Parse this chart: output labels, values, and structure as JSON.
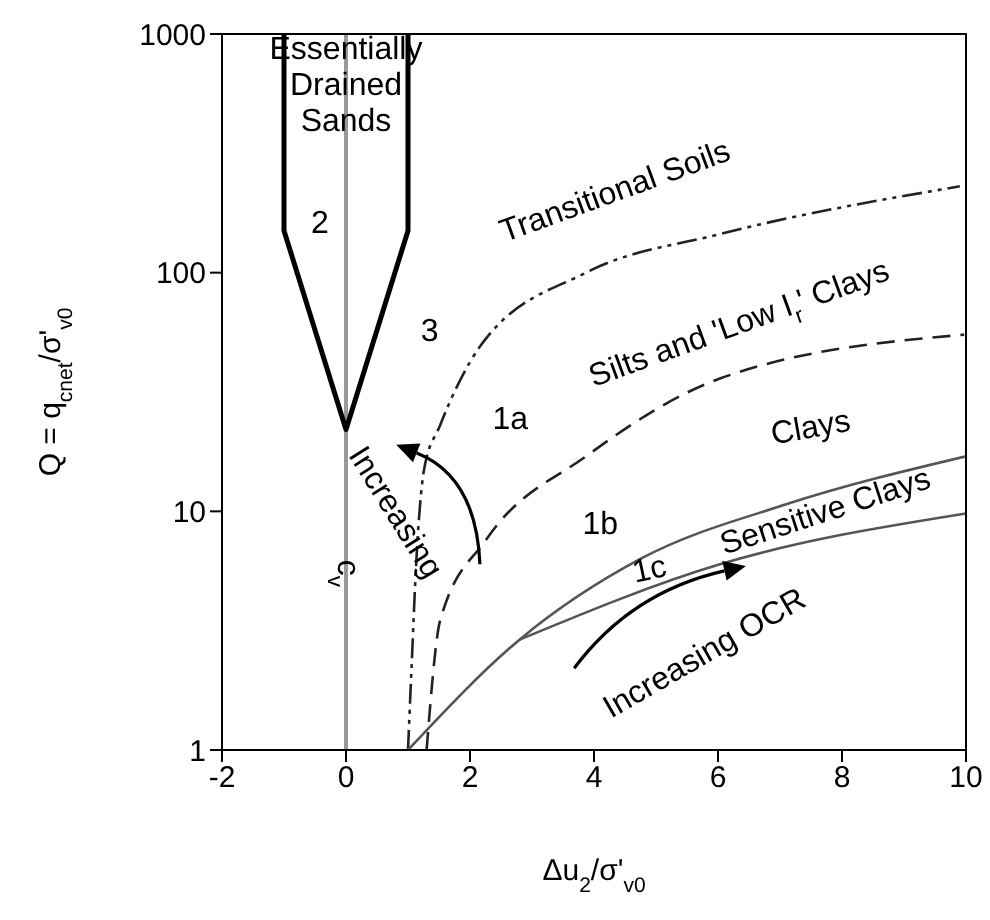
{
  "chart_data": {
    "type": "line",
    "xlabel": "Δu$_{2}$/σ'$_{v0}$",
    "ylabel": "Q = q$_{cnet}$/σ'$_{v0}$",
    "xlim": [
      -2,
      10
    ],
    "xticks": [
      -2,
      0,
      2,
      4,
      6,
      8,
      10
    ],
    "ylim": [
      1,
      1000
    ],
    "yticks": [
      1,
      10,
      100,
      1000
    ],
    "log": "y",
    "marker": "none",
    "ref_lines": [
      {
        "axis": "x",
        "value": 0,
        "color": "#999999"
      }
    ],
    "series": [
      {
        "color": "#000000",
        "line_style": "solid",
        "x": [
          -1,
          -1,
          0,
          1,
          1
        ],
        "values": [
          1000,
          150,
          22,
          150,
          1000
        ]
      },
      {
        "color": "#222222",
        "line_style": "dashdot",
        "x": [
          1,
          1.06,
          1.13,
          1.26,
          1.52,
          2.16,
          3.87,
          6.03,
          9.9
        ],
        "values": [
          1,
          2.3,
          5.9,
          15,
          23,
          49,
          100,
          145,
          230
        ]
      },
      {
        "color": "#222222",
        "line_style": "dashed",
        "x": [
          1.3,
          1.52,
          2.26,
          3.87,
          6.03,
          9.97
        ],
        "values": [
          1,
          3.5,
          7.6,
          17,
          36,
          55
        ]
      },
      {
        "color": "#555555",
        "line_style": "solid",
        "x": [
          1,
          2.8,
          4.74,
          7.1,
          10
        ],
        "values": [
          1,
          2.9,
          6.3,
          10.7,
          17
        ]
      },
      {
        "color": "#555555",
        "line_style": "solid",
        "x": [
          2.8,
          6.03,
          10
        ],
        "values": [
          2.9,
          6,
          9.8
        ]
      }
    ],
    "annotations": [
      "Essentially\nDrained\nSands",
      "2",
      "3",
      "Transitional Soils",
      "Silts and 'Low I$_{r}$' Clays",
      "1a",
      "Clays",
      "1b",
      "1c",
      "Sensitive Clays",
      "Increasing OCR",
      "Increasing",
      "c$_{v}$"
    ]
  }
}
